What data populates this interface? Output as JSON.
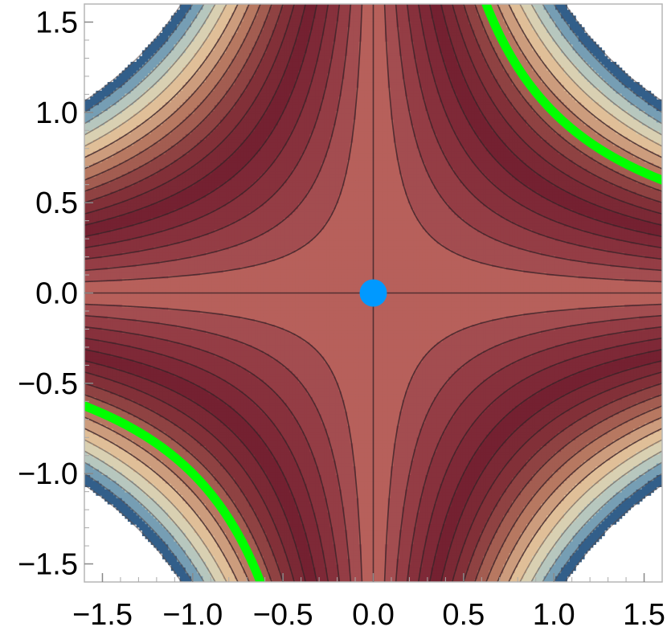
{
  "chart_data": {
    "type": "contour",
    "function": "x*y",
    "xlim": [
      -1.6,
      1.6
    ],
    "ylim": [
      -1.6,
      1.6
    ],
    "x_ticks": [
      -1.5,
      -1.0,
      -0.5,
      0.0,
      0.5,
      1.0,
      1.5
    ],
    "y_ticks": [
      -1.5,
      -1.0,
      -0.5,
      0.0,
      0.5,
      1.0,
      1.5
    ],
    "x_tick_labels": [
      "−1.5",
      "−1.0",
      "−0.5",
      "0.0",
      "0.5",
      "1.0",
      "1.5"
    ],
    "y_tick_labels": [
      "−1.5",
      "−1.0",
      "−0.5",
      "0.0",
      "0.5",
      "1.0",
      "1.5"
    ],
    "contour_levels": [
      -2.2,
      -2.1,
      -2.0,
      -1.9,
      -1.8,
      -1.7,
      -1.6,
      -1.5,
      -1.4,
      -1.3,
      -1.2,
      -1.1,
      -1.0,
      -0.9,
      -0.8,
      -0.7,
      -0.6,
      -0.5,
      -0.4,
      -0.3,
      -0.2,
      -0.1,
      0.0,
      0.1,
      0.2,
      0.3,
      0.4,
      0.5,
      0.6,
      0.7,
      0.8,
      0.9,
      1.0,
      1.1,
      1.2,
      1.3,
      1.4,
      1.5,
      1.6,
      1.7,
      1.8,
      1.9,
      2.0,
      2.1,
      2.2
    ],
    "highlight_curves": [
      {
        "equation": "x*y = 1",
        "color": "#00ff00"
      }
    ],
    "points": [
      {
        "x": 0.0,
        "y": 0.0,
        "color": "#0099ff"
      }
    ],
    "grid": false,
    "legend": "none"
  }
}
